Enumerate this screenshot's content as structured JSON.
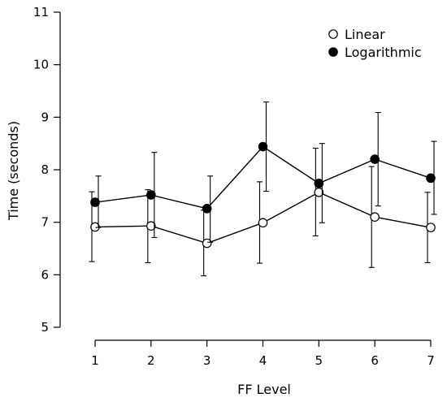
{
  "chart_data": {
    "type": "line",
    "xlabel": "FF Level",
    "ylabel": "Time (seconds)",
    "x": [
      1,
      2,
      3,
      4,
      5,
      6,
      7
    ],
    "ylim": [
      5,
      11
    ],
    "yticks": [
      5,
      6,
      7,
      8,
      9,
      10,
      11
    ],
    "legend_position": "top-right",
    "series": [
      {
        "name": "Linear",
        "marker": "open-circle",
        "values": [
          6.91,
          6.93,
          6.6,
          6.99,
          7.57,
          7.1,
          6.9
        ],
        "err_low": [
          6.25,
          6.23,
          5.98,
          6.22,
          6.74,
          6.14,
          6.23
        ],
        "err_high": [
          7.58,
          7.62,
          7.23,
          7.77,
          8.41,
          8.06,
          7.57
        ]
      },
      {
        "name": "Logarithmic",
        "marker": "filled-circle",
        "values": [
          7.38,
          7.52,
          7.26,
          8.44,
          7.74,
          8.2,
          7.84
        ],
        "err_low": [
          6.9,
          6.71,
          6.62,
          7.59,
          6.99,
          7.31,
          7.15
        ],
        "err_high": [
          7.88,
          8.33,
          7.88,
          9.29,
          8.5,
          9.09,
          8.54
        ]
      }
    ]
  }
}
